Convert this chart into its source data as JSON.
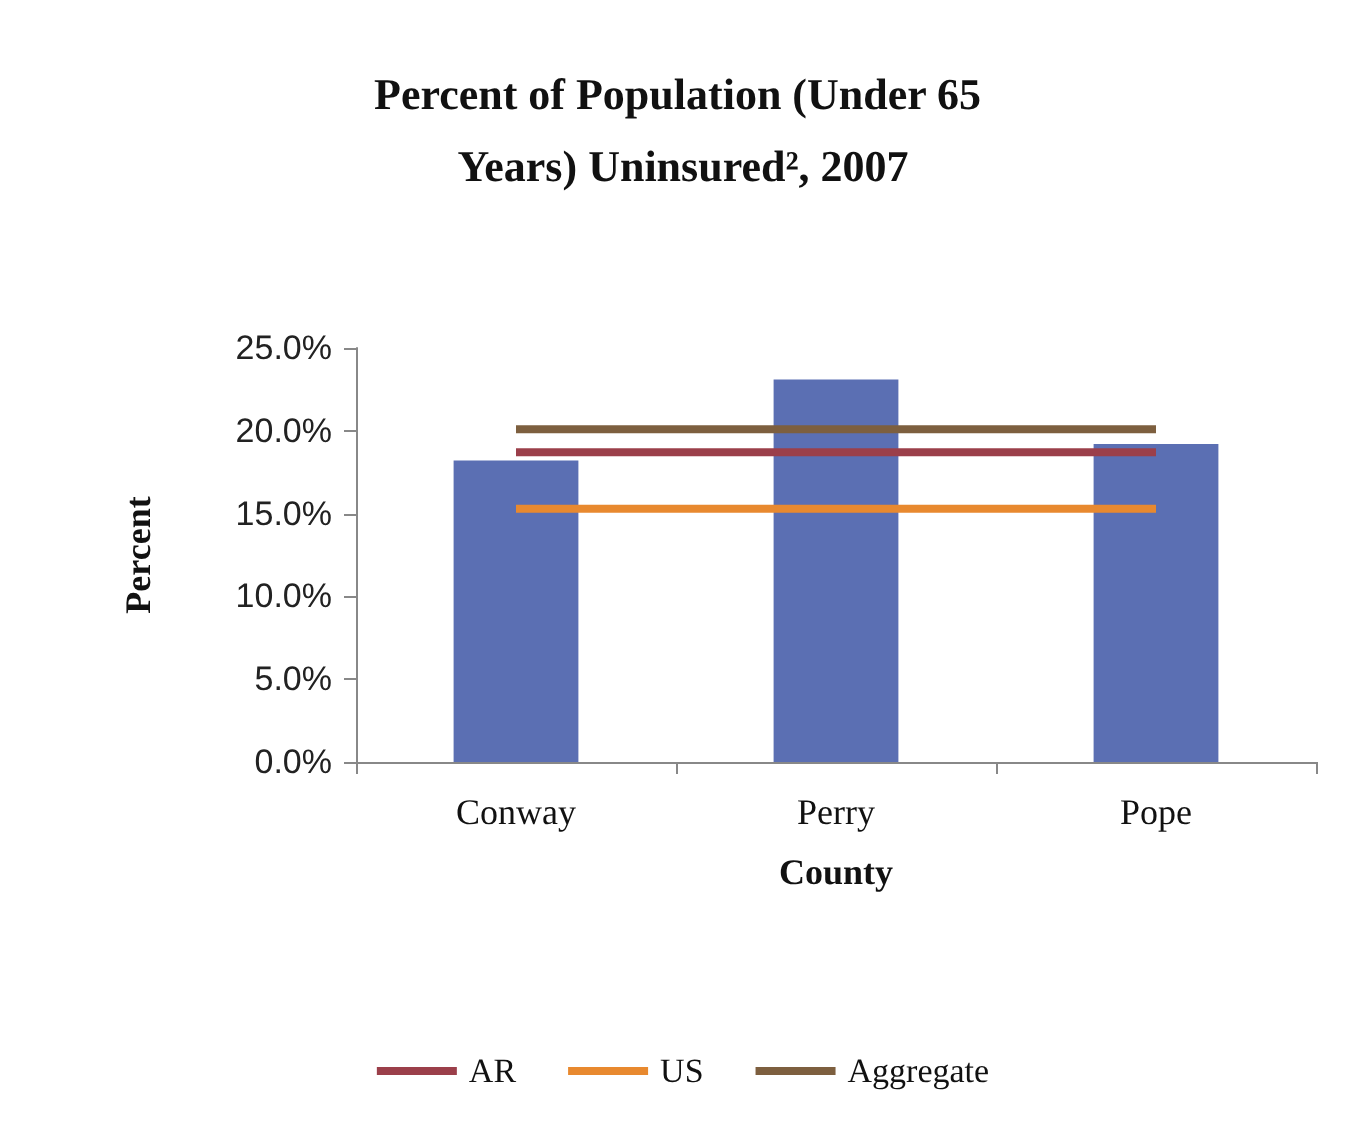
{
  "chart_data": {
    "type": "bar",
    "title": "Percent of Population (Under 65 Years) Uninsured², 2007",
    "xlabel": "County",
    "ylabel": "Percent",
    "categories": [
      "Conway",
      "Perry",
      "Pope"
    ],
    "series": [
      {
        "color": "#5b6fb3",
        "values": [
          18.2,
          23.1,
          19.2
        ]
      },
      {
        "type": "line",
        "name": "AR",
        "color": "#9b3f4a",
        "values": [
          18.7,
          18.7,
          18.7
        ]
      },
      {
        "type": "line",
        "name": "US",
        "color": "#e8892f",
        "values": [
          15.3,
          15.3,
          15.3
        ]
      },
      {
        "type": "line",
        "name": "Aggregate",
        "color": "#7d5f3f",
        "values": [
          20.1,
          20.1,
          20.1
        ]
      }
    ],
    "ylim": [
      0,
      25
    ],
    "yticks": [
      {
        "value": 0,
        "label": "0.0%"
      },
      {
        "value": 5,
        "label": "5.0%"
      },
      {
        "value": 10,
        "label": "10.0%"
      },
      {
        "value": 15,
        "label": "15.0%"
      },
      {
        "value": 20,
        "label": "20.0%"
      },
      {
        "value": 25,
        "label": "25.0%"
      }
    ],
    "grid": false,
    "legend": "bottom",
    "marker": "none",
    "line_style": "solid"
  }
}
